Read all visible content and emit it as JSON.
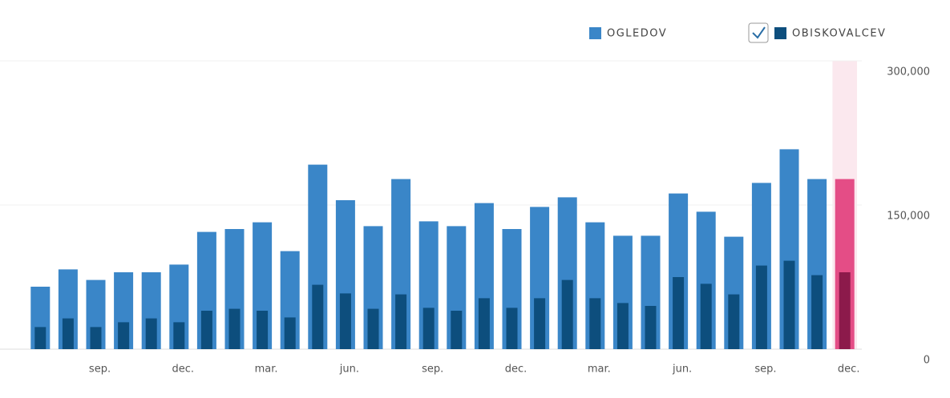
{
  "chart_data": {
    "type": "bar",
    "categories": [
      null,
      null,
      "sep.",
      null,
      null,
      "dec.",
      null,
      null,
      "mar.",
      null,
      null,
      "jun.",
      null,
      null,
      "sep.",
      null,
      null,
      "dec.",
      null,
      null,
      "mar.",
      null,
      null,
      "jun.",
      null,
      null,
      "sep.",
      null,
      null,
      "dec."
    ],
    "series": [
      {
        "name": "OGLEDOV",
        "color": "#3a86c8",
        "highlight_color": "#e44d86",
        "values": [
          65000,
          83000,
          72000,
          80000,
          80000,
          88000,
          122000,
          125000,
          132000,
          102000,
          192000,
          155000,
          128000,
          177000,
          133000,
          128000,
          152000,
          125000,
          148000,
          158000,
          132000,
          118000,
          118000,
          162000,
          143000,
          117000,
          173000,
          208000,
          177000,
          177000
        ]
      },
      {
        "name": "OBISKOVALCEV",
        "color": "#0d4e7d",
        "highlight_color": "#8c1a4b",
        "values": [
          23000,
          32000,
          23000,
          28000,
          32000,
          28000,
          40000,
          42000,
          40000,
          33000,
          67000,
          58000,
          42000,
          57000,
          43000,
          40000,
          53000,
          43000,
          53000,
          72000,
          53000,
          48000,
          45000,
          75000,
          68000,
          57000,
          87000,
          92000,
          77000,
          80000
        ]
      }
    ],
    "highlight_index": 29,
    "ylim": [
      0,
      300000
    ],
    "yticks": [
      0,
      {
        "value": 150000,
        "label": "150,000"
      },
      {
        "value": 300000,
        "label": "300,000"
      }
    ],
    "grid": true,
    "legend": "top-right"
  }
}
